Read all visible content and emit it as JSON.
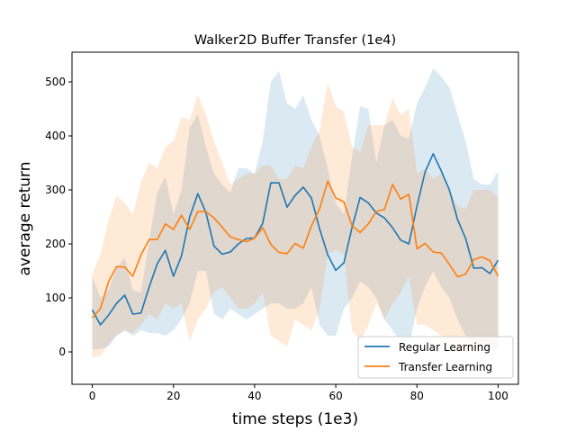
{
  "chart_data": {
    "type": "line",
    "title": "Walker2D Buffer Transfer (1e4)",
    "xlabel": "time steps (1e3)",
    "ylabel": "average return",
    "xlim": [
      -5,
      105
    ],
    "ylim": [
      -60,
      555
    ],
    "xticks": [
      0,
      20,
      40,
      60,
      80,
      100
    ],
    "yticks": [
      0,
      100,
      200,
      300,
      400,
      500
    ],
    "grid": false,
    "legend_position": "lower-right",
    "x": [
      0,
      2,
      4,
      6,
      8,
      10,
      12,
      14,
      16,
      18,
      20,
      22,
      24,
      26,
      28,
      30,
      32,
      34,
      36,
      38,
      40,
      42,
      44,
      46,
      48,
      50,
      52,
      54,
      56,
      58,
      60,
      62,
      64,
      66,
      68,
      70,
      72,
      74,
      76,
      78,
      80,
      82,
      84,
      86,
      88,
      90,
      92,
      94,
      96,
      98,
      100
    ],
    "series": [
      {
        "name": "Regular Learning",
        "color": "#1f77b4",
        "values": [
          78,
          50,
          68,
          90,
          105,
          70,
          72,
          120,
          163,
          188,
          140,
          178,
          250,
          293,
          258,
          196,
          181,
          185,
          200,
          210,
          211,
          238,
          313,
          313,
          268,
          290,
          305,
          285,
          228,
          180,
          151,
          165,
          230,
          286,
          276,
          257,
          248,
          230,
          207,
          200,
          270,
          333,
          367,
          335,
          300,
          245,
          210,
          155,
          156,
          145,
          170
        ],
        "lower": [
          5,
          5,
          10,
          30,
          40,
          30,
          40,
          35,
          35,
          30,
          40,
          60,
          90,
          150,
          150,
          70,
          60,
          80,
          70,
          60,
          70,
          80,
          90,
          90,
          80,
          80,
          90,
          120,
          50,
          30,
          30,
          80,
          100,
          130,
          120,
          100,
          60,
          40,
          20,
          10,
          80,
          120,
          150,
          120,
          100,
          60,
          30,
          10,
          5,
          5,
          5
        ],
        "upper": [
          140,
          100,
          115,
          155,
          175,
          115,
          110,
          205,
          295,
          325,
          255,
          300,
          415,
          440,
          380,
          330,
          310,
          295,
          340,
          340,
          330,
          390,
          500,
          520,
          460,
          450,
          475,
          430,
          400,
          340,
          275,
          255,
          360,
          455,
          450,
          350,
          420,
          430,
          400,
          395,
          460,
          490,
          525,
          510,
          490,
          440,
          390,
          320,
          310,
          310,
          335
        ]
      },
      {
        "name": "Transfer Learning",
        "color": "#ff7f0e",
        "values": [
          63,
          80,
          130,
          158,
          157,
          140,
          180,
          208,
          208,
          237,
          227,
          253,
          227,
          260,
          260,
          248,
          231,
          213,
          208,
          204,
          211,
          230,
          199,
          184,
          182,
          201,
          192,
          233,
          265,
          316,
          285,
          278,
          234,
          221,
          237,
          260,
          264,
          310,
          283,
          292,
          191,
          201,
          185,
          183,
          162,
          139,
          144,
          171,
          176,
          169,
          140
        ],
        "lower": [
          -10,
          -8,
          15,
          30,
          40,
          35,
          50,
          70,
          60,
          90,
          80,
          90,
          20,
          60,
          80,
          110,
          120,
          100,
          80,
          80,
          90,
          110,
          30,
          20,
          10,
          60,
          50,
          40,
          80,
          180,
          190,
          180,
          40,
          20,
          50,
          90,
          60,
          90,
          110,
          140,
          50,
          50,
          40,
          30,
          10,
          0,
          0,
          5,
          15,
          10,
          0
        ],
        "upper": [
          145,
          180,
          245,
          290,
          275,
          255,
          315,
          350,
          340,
          380,
          390,
          435,
          430,
          475,
          440,
          390,
          350,
          310,
          320,
          330,
          330,
          345,
          345,
          320,
          320,
          345,
          340,
          380,
          410,
          500,
          455,
          445,
          380,
          370,
          420,
          420,
          420,
          470,
          440,
          450,
          330,
          340,
          320,
          330,
          300,
          270,
          265,
          300,
          300,
          300,
          285
        ]
      }
    ]
  }
}
